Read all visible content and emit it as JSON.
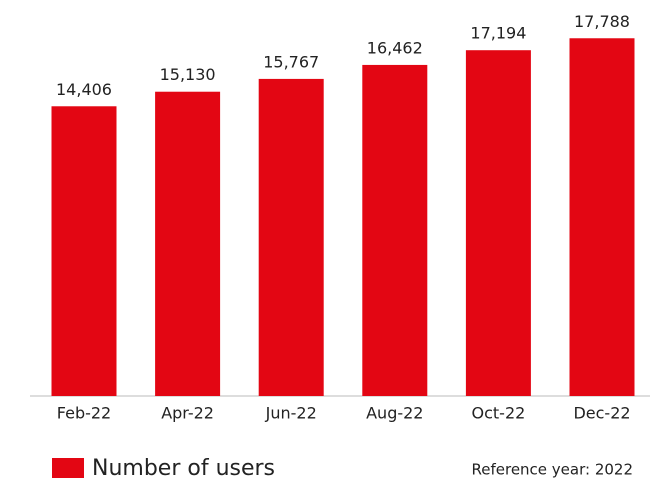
{
  "chart_data": {
    "type": "bar",
    "categories": [
      "Feb-22",
      "Apr-22",
      "Jun-22",
      "Aug-22",
      "Oct-22",
      "Dec-22"
    ],
    "series": [
      {
        "name": "Number of users",
        "color": "#e30613",
        "values": [
          14406,
          15130,
          15767,
          16462,
          17194,
          17788
        ],
        "value_labels": [
          "14,406",
          "15,130",
          "15,767",
          "16,462",
          "17,194",
          "17,788"
        ]
      }
    ],
    "ylim": [
      0,
      18000
    ],
    "note": "Reference year: 2022"
  }
}
